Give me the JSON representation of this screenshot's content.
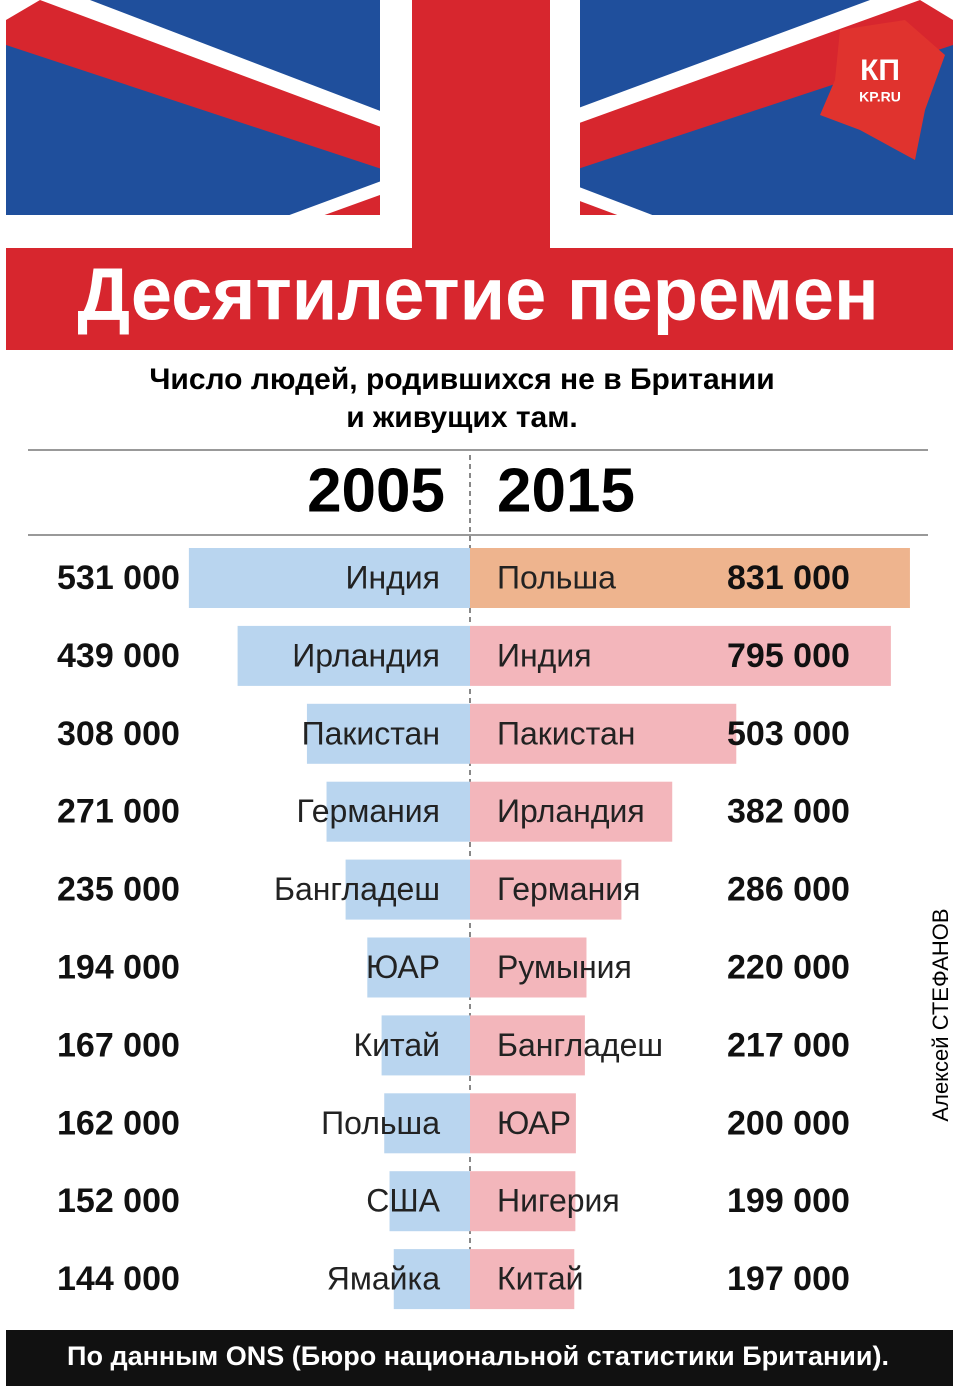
{
  "header": {
    "title": "Десятилетие перемен",
    "logo": "КП",
    "logo_sub": "KP.RU"
  },
  "subtitle": [
    "Число людей, родившихся не в Британии",
    "и живущих там."
  ],
  "chart_data": [
    {
      "type": "bar",
      "title": "2005",
      "categories": [
        "Индия",
        "Ирландия",
        "Пакистан",
        "Германия",
        "Бангладеш",
        "ЮАР",
        "Китай",
        "Польша",
        "США",
        "Ямайка"
      ],
      "values": [
        531000,
        439000,
        308000,
        271000,
        235000,
        194000,
        167000,
        162000,
        152000,
        144000
      ],
      "value_labels": [
        "531 000",
        "439 000",
        "308 000",
        "271 000",
        "235 000",
        "194 000",
        "167 000",
        "162 000",
        "152 000",
        "144 000"
      ],
      "colors": [
        "#b9d5ef",
        "#b9d5ef",
        "#b9d5ef",
        "#b9d5ef",
        "#b9d5ef",
        "#b9d5ef",
        "#b9d5ef",
        "#b9d5ef",
        "#b9d5ef",
        "#b9d5ef"
      ],
      "xlim": [
        0,
        850000
      ]
    },
    {
      "type": "bar",
      "title": "2015",
      "categories": [
        "Польша",
        "Индия",
        "Пакистан",
        "Ирландия",
        "Германия",
        "Румыния",
        "Бангладеш",
        "ЮАР",
        "Нигерия",
        "Китай"
      ],
      "values": [
        831000,
        795000,
        503000,
        382000,
        286000,
        220000,
        217000,
        200000,
        199000,
        197000
      ],
      "value_labels": [
        "831 000",
        "795 000",
        "503 000",
        "382 000",
        "286 000",
        "220 000",
        "217 000",
        "200 000",
        "199 000",
        "197 000"
      ],
      "colors": [
        "#eeb48e",
        "#f3b6bb",
        "#f3b6bb",
        "#f3b6bb",
        "#f3b6bb",
        "#f3b6bb",
        "#f3b6bb",
        "#f3b6bb",
        "#f3b6bb",
        "#f3b6bb"
      ],
      "xlim": [
        0,
        850000
      ]
    }
  ],
  "author": "Алексей СТЕФАНОВ",
  "source": "По данным ONS (Бюро национальной статистики Британии)."
}
